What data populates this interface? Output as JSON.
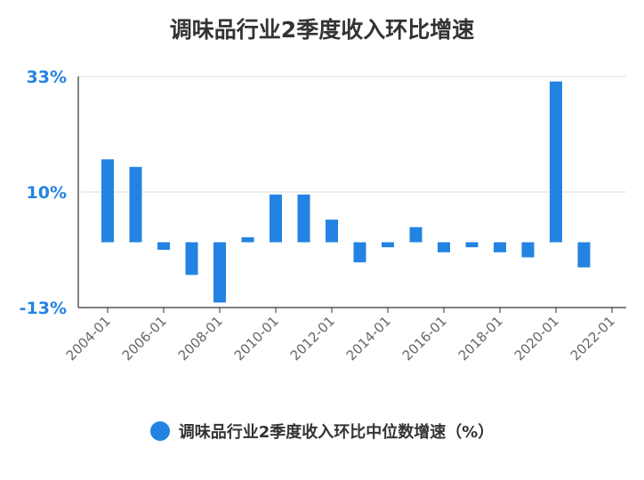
{
  "chart_data": {
    "type": "bar",
    "title": "调味品行业2季度收入环比增速",
    "series": [
      {
        "name": "调味品行业2季度收入环比中位数增速（%）",
        "color": "#2383e2",
        "x": [
          "2004-01",
          "2005-01",
          "2006-01",
          "2007-01",
          "2008-01",
          "2009-01",
          "2010-01",
          "2011-01",
          "2012-01",
          "2013-01",
          "2014-01",
          "2015-01",
          "2016-01",
          "2017-01",
          "2018-01",
          "2019-01",
          "2020-01",
          "2021-01"
        ],
        "values": [
          16.5,
          15.0,
          -1.5,
          -6.5,
          -12.0,
          1.0,
          9.5,
          9.5,
          4.5,
          -4.0,
          -1.0,
          3.0,
          -2.0,
          -1.0,
          -2.0,
          -3.0,
          32.0,
          -5.0
        ]
      }
    ],
    "x_tick_labels": [
      "2004-01",
      "2006-01",
      "2008-01",
      "2010-01",
      "2012-01",
      "2014-01",
      "2016-01",
      "2018-01",
      "2020-01",
      "2022-01"
    ],
    "y_tick_labels": [
      "33%",
      "10%",
      "-13%"
    ],
    "y_ticks": [
      33,
      10,
      -13
    ],
    "ylim": [
      -13,
      33
    ],
    "y_label_color": "#2383e2",
    "grid": true,
    "legend_position": "bottom"
  }
}
